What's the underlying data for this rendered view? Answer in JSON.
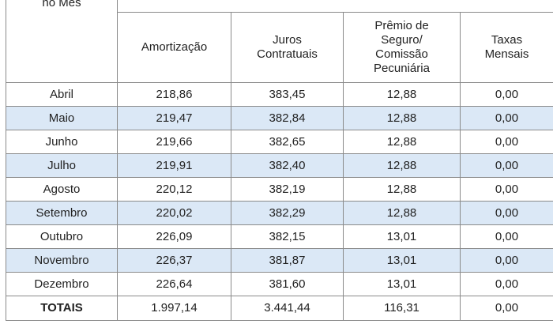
{
  "header": {
    "month_col": "no Mês",
    "amortizacao": "Amortização",
    "juros": [
      "Juros",
      "Contratuais"
    ],
    "premio": [
      "Prêmio de",
      "Seguro/",
      "Comissão",
      "Pecuniária"
    ],
    "taxas": [
      "Taxas",
      "Mensais"
    ]
  },
  "rows": [
    {
      "mes": "Abril",
      "amortizacao": "218,86",
      "juros": "383,45",
      "premio": "12,88",
      "taxas": "0,00"
    },
    {
      "mes": "Maio",
      "amortizacao": "219,47",
      "juros": "382,84",
      "premio": "12,88",
      "taxas": "0,00"
    },
    {
      "mes": "Junho",
      "amortizacao": "219,66",
      "juros": "382,65",
      "premio": "12,88",
      "taxas": "0,00"
    },
    {
      "mes": "Julho",
      "amortizacao": "219,91",
      "juros": "382,40",
      "premio": "12,88",
      "taxas": "0,00"
    },
    {
      "mes": "Agosto",
      "amortizacao": "220,12",
      "juros": "382,19",
      "premio": "12,88",
      "taxas": "0,00"
    },
    {
      "mes": "Setembro",
      "amortizacao": "220,02",
      "juros": "382,29",
      "premio": "12,88",
      "taxas": "0,00"
    },
    {
      "mes": "Outubro",
      "amortizacao": "226,09",
      "juros": "382,15",
      "premio": "13,01",
      "taxas": "0,00"
    },
    {
      "mes": "Novembro",
      "amortizacao": "226,37",
      "juros": "381,87",
      "premio": "13,01",
      "taxas": "0,00"
    },
    {
      "mes": "Dezembro",
      "amortizacao": "226,64",
      "juros": "381,60",
      "premio": "13,01",
      "taxas": "0,00"
    }
  ],
  "totals": {
    "label": "TOTAIS",
    "amortizacao": "1.997,14",
    "juros": "3.441,44",
    "premio": "116,31",
    "taxas": "0,00"
  },
  "colors": {
    "row_highlight": "#dbe8f6",
    "border": "#8a8a8a"
  }
}
